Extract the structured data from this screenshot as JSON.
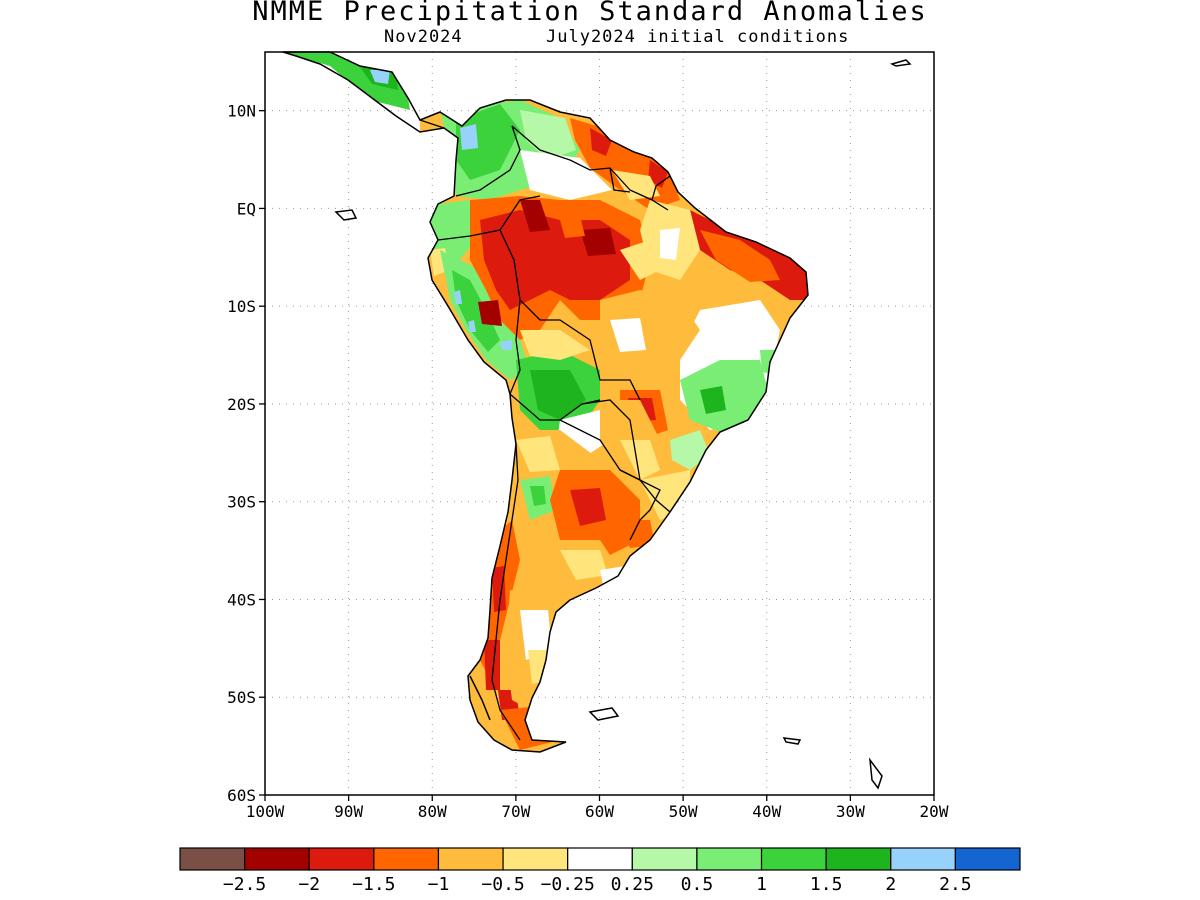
{
  "header": {
    "title": "NMME Precipitation Standard Anomalies",
    "target_month": "Nov2024",
    "initial_conditions": "July2024 initial conditions"
  },
  "map": {
    "region": "South America",
    "lon_range": [
      -100,
      -20
    ],
    "lat_range": [
      -60,
      16
    ],
    "gridlines": "dotted",
    "lat_ticks": [
      {
        "value": 10,
        "label": "10N"
      },
      {
        "value": 0,
        "label": "EQ"
      },
      {
        "value": -10,
        "label": "10S"
      },
      {
        "value": -20,
        "label": "20S"
      },
      {
        "value": -30,
        "label": "30S"
      },
      {
        "value": -40,
        "label": "40S"
      },
      {
        "value": -50,
        "label": "50S"
      },
      {
        "value": -60,
        "label": "60S"
      }
    ],
    "lon_ticks": [
      {
        "value": -100,
        "label": "100W"
      },
      {
        "value": -90,
        "label": "90W"
      },
      {
        "value": -80,
        "label": "80W"
      },
      {
        "value": -70,
        "label": "70W"
      },
      {
        "value": -60,
        "label": "60W"
      },
      {
        "value": -50,
        "label": "50W"
      },
      {
        "value": -40,
        "label": "40W"
      },
      {
        "value": -30,
        "label": "30W"
      },
      {
        "value": -20,
        "label": "20W"
      }
    ]
  },
  "colorbar": {
    "colors": [
      "#7a5046",
      "#a30000",
      "#dd1a0e",
      "#ff6600",
      "#ffbb3c",
      "#ffe57c",
      "#ffffff",
      "#b4f8a8",
      "#7aee74",
      "#3cd23c",
      "#1eb41e",
      "#96d2fa",
      "#1464d2"
    ],
    "labels": [
      "−2.5",
      "−2",
      "−1.5",
      "−1",
      "−0.5",
      "−0.25",
      "0.25",
      "0.5",
      "1",
      "1.5",
      "2",
      "2.5"
    ]
  }
}
